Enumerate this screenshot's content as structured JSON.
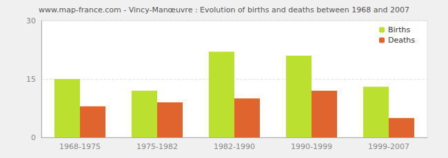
{
  "chart_data": {
    "type": "bar",
    "title": "www.map-france.com - Vincy-Manœuvre : Evolution of births and deaths between 1968 and 2007",
    "categories": [
      "1968-1975",
      "1975-1982",
      "1982-1990",
      "1990-1999",
      "1999-2007"
    ],
    "series": [
      {
        "name": "Births",
        "color": "#bbe02f",
        "values": [
          15,
          12,
          22,
          21,
          13
        ]
      },
      {
        "name": "Deaths",
        "color": "#e0642e",
        "values": [
          8,
          9,
          10,
          12,
          5
        ]
      }
    ],
    "ylim": [
      0,
      30
    ],
    "yticks": [
      0,
      15,
      30
    ],
    "grid": true,
    "legend": "upper right"
  }
}
